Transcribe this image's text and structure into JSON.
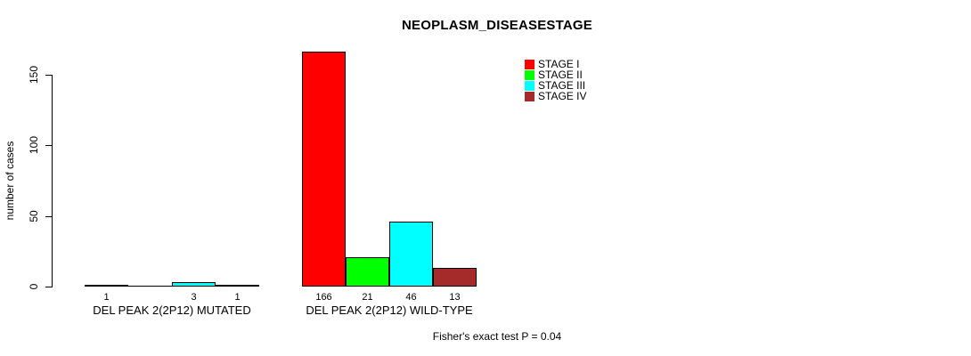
{
  "chart_data": {
    "type": "bar",
    "title": "NEOPLASM_DISEASESTAGE",
    "ylabel": "number of cases",
    "xlabel": "",
    "ylim": [
      0,
      166
    ],
    "yticks": [
      0,
      50,
      100,
      150
    ],
    "grid": false,
    "legend_position": "top-right",
    "categories": [
      "DEL PEAK 2(2P12) MUTATED",
      "DEL PEAK 2(2P12) WILD-TYPE"
    ],
    "series": [
      {
        "name": "STAGE I",
        "color": "#ff0000",
        "values": [
          1,
          166
        ]
      },
      {
        "name": "STAGE II",
        "color": "#00ff00",
        "values": [
          0,
          21
        ]
      },
      {
        "name": "STAGE III",
        "color": "#00ffff",
        "values": [
          3,
          46
        ]
      },
      {
        "name": "STAGE IV",
        "color": "#a52a2a",
        "values": [
          1,
          13
        ]
      }
    ],
    "bar_outline_color": "#000000",
    "value_label_rule": "value shown under each bar; zero values unlabeled",
    "annotation": "Fisher's exact test P = 0.04"
  }
}
